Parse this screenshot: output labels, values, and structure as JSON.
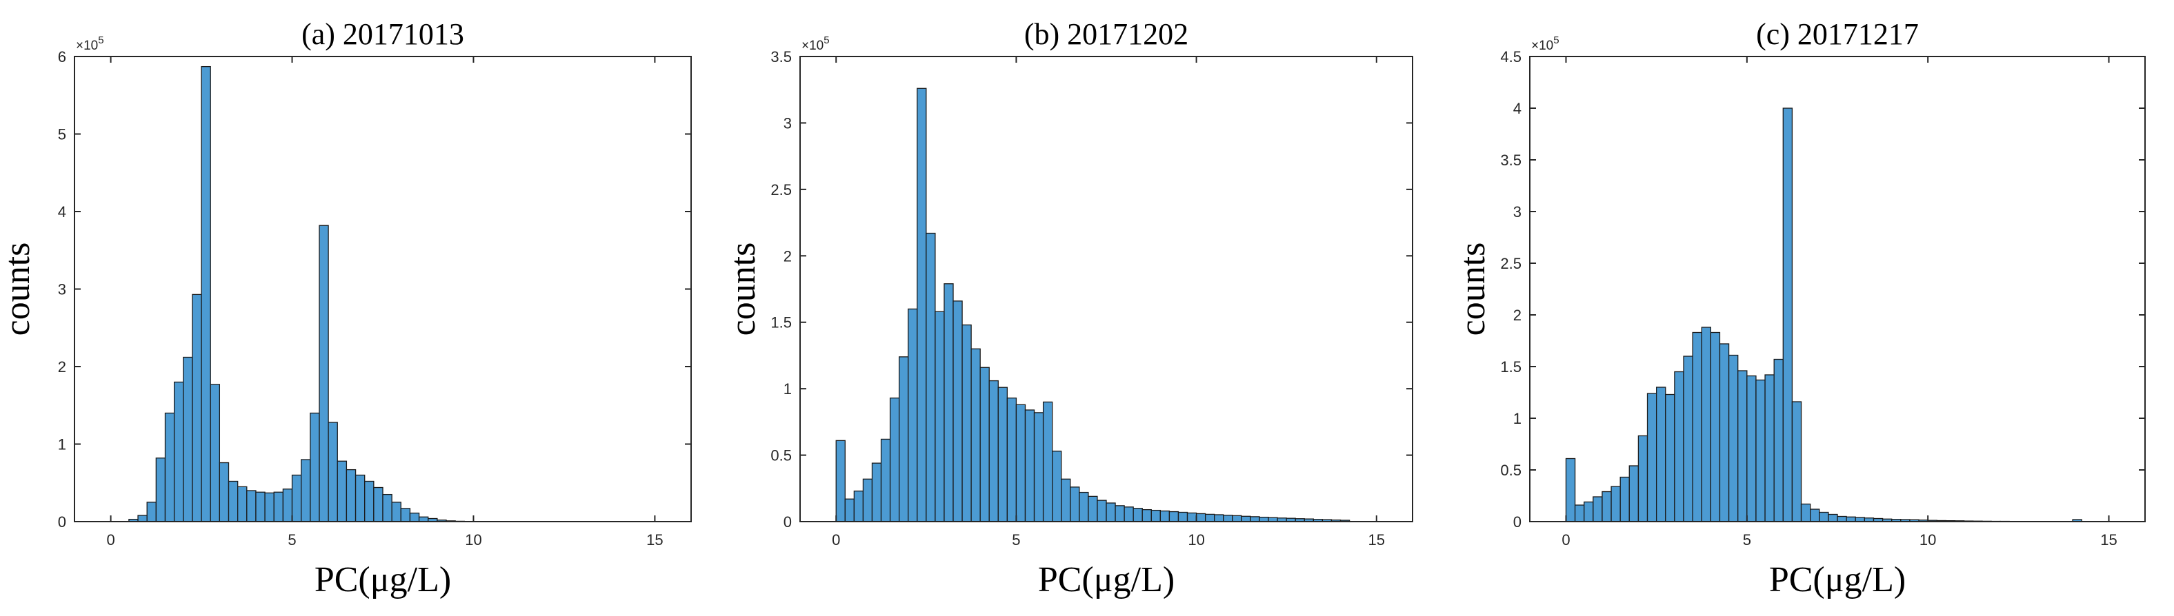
{
  "colors": {
    "bar_fill": "#4C9BD3",
    "bar_edge": "#1a1a1a",
    "axis": "#262626"
  },
  "chart_data": [
    {
      "type": "bar",
      "title": "(a) 20171013",
      "xlabel": "PC(μg/L)",
      "ylabel": "counts",
      "exponent_label": "×10",
      "exponent_power": "5",
      "xlim": [
        -1,
        16
      ],
      "ylim": [
        0,
        6
      ],
      "xticks": [
        0,
        5,
        10,
        15
      ],
      "xtick_labels": [
        "0",
        "5",
        "10",
        "15"
      ],
      "yticks": [
        0,
        1,
        2,
        3,
        4,
        5,
        6
      ],
      "ytick_labels": [
        "0",
        "1",
        "2",
        "3",
        "4",
        "5",
        "6"
      ],
      "bin_width": 0.25,
      "bin_start": 0,
      "values": [
        0,
        0,
        0.03,
        0.08,
        0.25,
        0.82,
        1.4,
        1.8,
        2.12,
        2.93,
        5.87,
        1.77,
        0.76,
        0.52,
        0.45,
        0.4,
        0.38,
        0.37,
        0.38,
        0.42,
        0.6,
        0.8,
        1.4,
        3.82,
        1.28,
        0.78,
        0.67,
        0.6,
        0.52,
        0.44,
        0.35,
        0.25,
        0.17,
        0.11,
        0.06,
        0.04,
        0.02,
        0.01,
        0.005,
        0.003,
        0.002,
        0.001,
        0.001,
        0.0005,
        0.0005,
        0.0003,
        0.0002,
        0.0001
      ]
    },
    {
      "type": "bar",
      "title": "(b) 20171202",
      "xlabel": "PC(μg/L)",
      "ylabel": "counts",
      "exponent_label": "×10",
      "exponent_power": "5",
      "xlim": [
        -1,
        16
      ],
      "ylim": [
        0,
        3.5
      ],
      "xticks": [
        0,
        5,
        10,
        15
      ],
      "xtick_labels": [
        "0",
        "5",
        "10",
        "15"
      ],
      "yticks": [
        0,
        0.5,
        1,
        1.5,
        2,
        2.5,
        3,
        3.5
      ],
      "ytick_labels": [
        "0",
        "0.5",
        "1",
        "1.5",
        "2",
        "2.5",
        "3",
        "3.5"
      ],
      "bin_width": 0.25,
      "bin_start": 0,
      "values": [
        0.61,
        0.17,
        0.23,
        0.32,
        0.44,
        0.62,
        0.93,
        1.24,
        1.6,
        3.26,
        2.17,
        1.58,
        1.79,
        1.66,
        1.48,
        1.3,
        1.16,
        1.06,
        1.01,
        0.93,
        0.88,
        0.84,
        0.82,
        0.9,
        0.53,
        0.32,
        0.26,
        0.22,
        0.19,
        0.16,
        0.14,
        0.12,
        0.11,
        0.1,
        0.09,
        0.085,
        0.08,
        0.075,
        0.07,
        0.065,
        0.06,
        0.055,
        0.052,
        0.048,
        0.045,
        0.04,
        0.037,
        0.033,
        0.03,
        0.027,
        0.025,
        0.022,
        0.02,
        0.017,
        0.015,
        0.012,
        0.01
      ]
    },
    {
      "type": "bar",
      "title": "(c) 20171217",
      "xlabel": "PC(μg/L)",
      "ylabel": "counts",
      "exponent_label": "×10",
      "exponent_power": "5",
      "xlim": [
        -1,
        16
      ],
      "ylim": [
        0,
        4.5
      ],
      "xticks": [
        0,
        5,
        10,
        15
      ],
      "xtick_labels": [
        "0",
        "5",
        "10",
        "15"
      ],
      "yticks": [
        0,
        0.5,
        1,
        1.5,
        2,
        2.5,
        3,
        3.5,
        4,
        4.5
      ],
      "ytick_labels": [
        "0",
        "0.5",
        "1",
        "1.5",
        "2",
        "2.5",
        "3",
        "3.5",
        "4",
        "4.5"
      ],
      "bin_width": 0.25,
      "bin_start": 0,
      "values": [
        0.61,
        0.16,
        0.19,
        0.24,
        0.29,
        0.34,
        0.43,
        0.54,
        0.83,
        1.24,
        1.3,
        1.23,
        1.45,
        1.6,
        1.83,
        1.88,
        1.83,
        1.72,
        1.61,
        1.46,
        1.41,
        1.37,
        1.42,
        1.57,
        4.0,
        1.16,
        0.17,
        0.12,
        0.09,
        0.07,
        0.05,
        0.045,
        0.04,
        0.035,
        0.03,
        0.025,
        0.022,
        0.02,
        0.018,
        0.015,
        0.012,
        0.01,
        0.009,
        0.008,
        0.006,
        0.005,
        0.004,
        0.003,
        0.003,
        0.002,
        0.002,
        0.002,
        0.001,
        0.001,
        0.001,
        0.001,
        0.02
      ]
    }
  ]
}
